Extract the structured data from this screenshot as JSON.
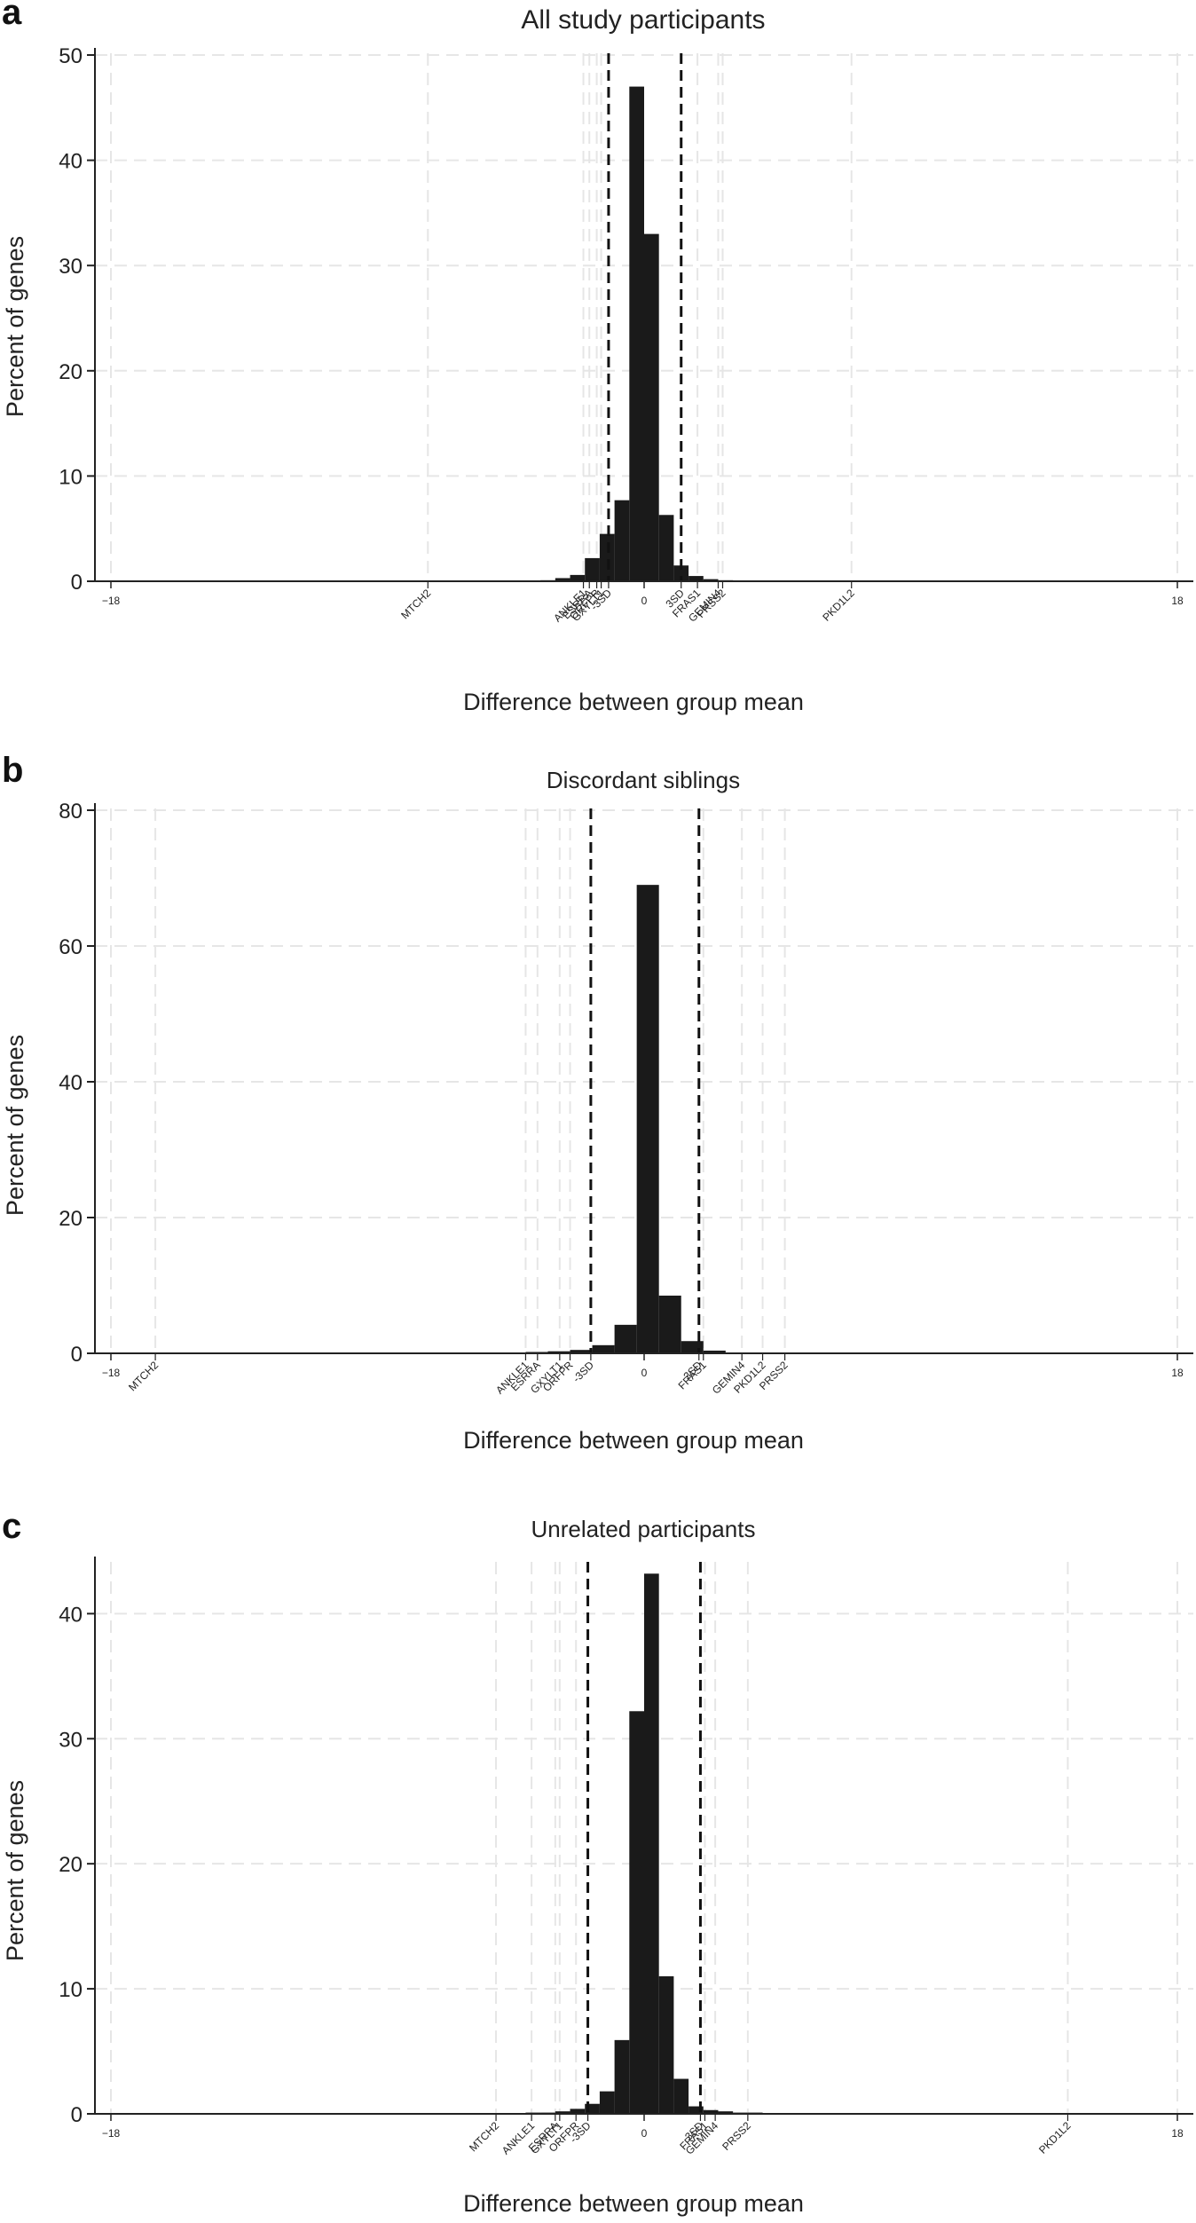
{
  "chart_data": [
    {
      "type": "bar",
      "panel_letter": "a",
      "title": "All study participants",
      "xlabel": "Difference between group mean",
      "ylabel": "Percent of genes",
      "xlim": [
        -18,
        18
      ],
      "ylim": [
        0,
        50
      ],
      "yticks": [
        0,
        10,
        20,
        30,
        40,
        50
      ],
      "xticks": [
        -18,
        0,
        18
      ],
      "grid": true,
      "bin_width": 0.5,
      "bin_starts": [
        -3.5,
        -3.0,
        -2.5,
        -2.0,
        -1.5,
        -1.0,
        -0.5,
        0.0,
        0.5,
        1.0,
        1.5,
        2.0,
        2.5
      ],
      "values": [
        0.1,
        0.3,
        0.6,
        2.2,
        4.5,
        7.7,
        47.0,
        33.0,
        6.3,
        1.5,
        0.5,
        0.2,
        0.1
      ],
      "sd_lines": [
        {
          "label": "-3SD",
          "x": -1.2
        },
        {
          "label": "3SD",
          "x": 1.25
        }
      ],
      "genes": [
        {
          "label": "MTCH2",
          "x": -7.3
        },
        {
          "label": "ANKLE1",
          "x": -2.05
        },
        {
          "label": "ESRRA",
          "x": -1.85
        },
        {
          "label": "ORFPR",
          "x": -1.6
        },
        {
          "label": "GXYLT1",
          "x": -1.45
        },
        {
          "label": "FRAS1",
          "x": 1.8
        },
        {
          "label": "GEMIN4",
          "x": 2.5
        },
        {
          "label": "PRSS2",
          "x": 2.65
        },
        {
          "label": "PKD1L2",
          "x": 7.0
        }
      ]
    },
    {
      "type": "bar",
      "panel_letter": "b",
      "title": "Discordant siblings",
      "xlabel": "Difference between group mean",
      "ylabel": "Percent of genes",
      "xlim": [
        -18,
        18
      ],
      "ylim": [
        0,
        80
      ],
      "yticks": [
        0,
        20,
        40,
        60,
        80
      ],
      "xticks": [
        -18,
        0,
        18
      ],
      "grid": true,
      "bin_width": 0.75,
      "bin_starts": [
        -7.0,
        -6.25,
        -5.5,
        -4.75,
        -4.0,
        -3.25,
        -2.5,
        -1.75,
        -1.0,
        -0.25,
        0.5,
        1.25,
        2.0,
        2.75
      ],
      "values": [
        0.1,
        0.1,
        0.1,
        0.1,
        0.2,
        0.3,
        0.5,
        1.2,
        4.2,
        69.0,
        8.5,
        1.8,
        0.4,
        0.1
      ],
      "sd_lines": [
        {
          "label": "-3SD",
          "x": -1.8
        },
        {
          "label": "3SD",
          "x": 1.85
        }
      ],
      "genes": [
        {
          "label": "MTCH2",
          "x": -16.5
        },
        {
          "label": "ANKLE1",
          "x": -4.0
        },
        {
          "label": "ESRRA",
          "x": -3.6
        },
        {
          "label": "GXYLT1",
          "x": -2.85
        },
        {
          "label": "ORFPR",
          "x": -2.5
        },
        {
          "label": "FRAS1",
          "x": 2.0
        },
        {
          "label": "GEMIN4",
          "x": 3.3
        },
        {
          "label": "PKD1L2",
          "x": 4.0
        },
        {
          "label": "PRSS2",
          "x": 4.75
        }
      ]
    },
    {
      "type": "bar",
      "panel_letter": "c",
      "title": "Unrelated participants",
      "xlabel": "Difference between group mean",
      "ylabel": "Percent of genes",
      "xlim": [
        -18,
        18
      ],
      "ylim": [
        0,
        44
      ],
      "yticks": [
        0,
        10,
        20,
        30,
        40
      ],
      "xticks": [
        -18,
        0,
        18
      ],
      "grid": true,
      "bin_width": 0.5,
      "bin_starts": [
        -4.0,
        -3.5,
        -3.0,
        -2.5,
        -2.0,
        -1.5,
        -1.0,
        -0.5,
        0.0,
        0.5,
        1.0,
        1.5,
        2.0,
        2.5,
        3.0,
        3.5
      ],
      "values": [
        0.1,
        0.1,
        0.2,
        0.4,
        0.8,
        1.8,
        5.9,
        32.2,
        43.2,
        11.0,
        2.8,
        0.6,
        0.3,
        0.2,
        0.1,
        0.1
      ],
      "sd_lines": [
        {
          "label": "-3SD",
          "x": -1.9
        },
        {
          "label": "3SD",
          "x": 1.9
        }
      ],
      "genes": [
        {
          "label": "MTCH2",
          "x": -5.0
        },
        {
          "label": "ANKLE1",
          "x": -3.8
        },
        {
          "label": "ESRRA",
          "x": -3.0
        },
        {
          "label": "GXYLT1",
          "x": -2.85
        },
        {
          "label": "ORFPR",
          "x": -2.3
        },
        {
          "label": "FRAS1",
          "x": 2.05
        },
        {
          "label": "3SD_GEMIN4",
          "x": 2.4
        },
        {
          "label": "PRSS2",
          "x": 3.5
        },
        {
          "label": "PKD1L2",
          "x": 14.3
        }
      ]
    }
  ]
}
